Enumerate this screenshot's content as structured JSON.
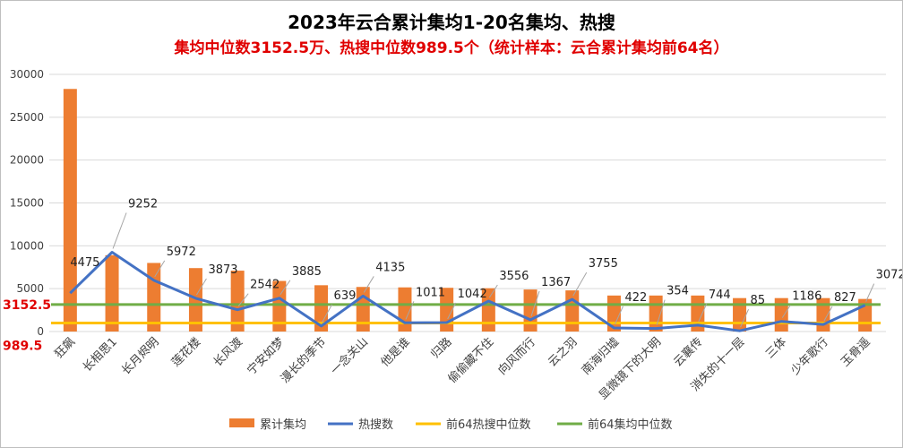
{
  "chart_data": {
    "type": "bar+line",
    "title": "2023年云合累计集均1-20名集均、热搜",
    "subtitle": "集均中位数3152.5万、热搜中位数989.5个（统计样本：云合累计集均前64名）",
    "categories": [
      "狂飙",
      "长相思1",
      "长月烬明",
      "莲花楼",
      "长风渡",
      "宁安如梦",
      "漫长的季节",
      "一念关山",
      "他是谁",
      "归路",
      "偷偷藏不住",
      "向风而行",
      "云之羽",
      "南海归墟",
      "显微镜下的大明",
      "云襄传",
      "消失的十一层",
      "三体",
      "少年歌行",
      "玉骨遥"
    ],
    "series": [
      {
        "name": "累计集均",
        "type": "bar",
        "color": "#ed7d31",
        "values": [
          28300,
          8900,
          8000,
          7400,
          7100,
          5900,
          5400,
          5200,
          5150,
          5100,
          5050,
          4900,
          4800,
          4200,
          4200,
          4200,
          3900,
          3900,
          3900,
          3800
        ]
      },
      {
        "name": "热搜数",
        "type": "line",
        "color": "#4472c4",
        "values": [
          4475,
          9252,
          5972,
          3873,
          2542,
          3885,
          639,
          4135,
          1011,
          1042,
          3556,
          1367,
          3755,
          422,
          354,
          744,
          85,
          1186,
          827,
          3072
        ],
        "labels": [
          "4475",
          "9252",
          "5972",
          "3873",
          "2542",
          "3885",
          "639",
          "4135",
          "1011",
          "1042",
          "3556",
          "1367",
          "3755",
          "422",
          "354",
          "744",
          "85",
          "1186",
          "827",
          "3072"
        ]
      },
      {
        "name": "前64热搜中位数",
        "type": "line",
        "color": "#ffc000",
        "value": 989.5
      },
      {
        "name": "前64集均中位数",
        "type": "line",
        "color": "#70ad47",
        "value": 3152.5
      }
    ],
    "reference_labels": [
      "3152.5",
      "989.5"
    ],
    "yticks": [
      "0",
      "5000",
      "10000",
      "15000",
      "20000",
      "25000",
      "30000"
    ],
    "ylim": [
      0,
      30000
    ],
    "grid": true,
    "legend_position": "bottom"
  }
}
